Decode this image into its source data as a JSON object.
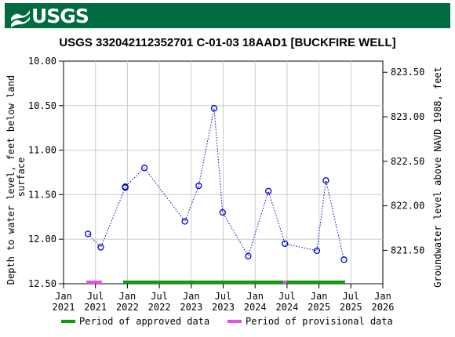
{
  "header": {
    "logo_text": "USGS",
    "logo_icon": "usgs-wave-icon",
    "banner_color": "#006b3f"
  },
  "chart_data": {
    "type": "scatter",
    "title": "USGS 332042112352701 C-01-03 18AAD1 [BUCKFIRE WELL]",
    "ylabel_left": [
      "Depth to water level, feet below land",
      "surface"
    ],
    "ylabel_right": "Groundwater level above NAVD 1988, feet",
    "y_left_range": [
      10.0,
      12.5
    ],
    "y_left_ticks": [
      "10.00",
      "10.50",
      "11.00",
      "11.50",
      "12.00",
      "12.50"
    ],
    "y_right_ticks": [
      {
        "depth": 10.125,
        "label": "823.50"
      },
      {
        "depth": 10.625,
        "label": "823.00"
      },
      {
        "depth": 11.125,
        "label": "822.50"
      },
      {
        "depth": 11.625,
        "label": "822.00"
      },
      {
        "depth": 12.125,
        "label": "821.50"
      }
    ],
    "x_ticks": [
      {
        "m": 0,
        "label": [
          "Jan",
          "2021"
        ]
      },
      {
        "m": 6,
        "label": [
          "Jul",
          "2021"
        ]
      },
      {
        "m": 12,
        "label": [
          "Jan",
          "2022"
        ]
      },
      {
        "m": 18,
        "label": [
          "Jul",
          "2022"
        ]
      },
      {
        "m": 24,
        "label": [
          "Jan",
          "2023"
        ]
      },
      {
        "m": 30,
        "label": [
          "Jul",
          "2023"
        ]
      },
      {
        "m": 36,
        "label": [
          "Jan",
          "2024"
        ]
      },
      {
        "m": 42,
        "label": [
          "Jul",
          "2024"
        ]
      },
      {
        "m": 48,
        "label": [
          "Jan",
          "2025"
        ]
      },
      {
        "m": 54,
        "label": [
          "Jul",
          "2025"
        ]
      },
      {
        "m": 60,
        "label": [
          "Jan",
          "2026"
        ]
      }
    ],
    "x_range_months": [
      0,
      60
    ],
    "series": [
      {
        "points": [
          {
            "date": "2021-05",
            "m": 4.6,
            "depth": 11.94
          },
          {
            "date": "2021-07",
            "m": 7.0,
            "depth": 12.09
          },
          {
            "date": "2021-12",
            "m": 11.6,
            "depth": 11.42
          },
          {
            "date": "2021-12",
            "m": 11.6,
            "depth": 11.41
          },
          {
            "date": "2022-04",
            "m": 15.2,
            "depth": 11.2
          },
          {
            "date": "2022-11",
            "m": 22.8,
            "depth": 11.8
          },
          {
            "date": "2023-02",
            "m": 25.4,
            "depth": 11.4
          },
          {
            "date": "2023-05",
            "m": 28.3,
            "depth": 10.53
          },
          {
            "date": "2023-07",
            "m": 29.9,
            "depth": 11.7
          },
          {
            "date": "2023-12",
            "m": 34.7,
            "depth": 12.19
          },
          {
            "date": "2024-04",
            "m": 38.5,
            "depth": 11.46
          },
          {
            "date": "2024-06",
            "m": 41.6,
            "depth": 12.05
          },
          {
            "date": "2024-12",
            "m": 47.6,
            "depth": 12.13
          },
          {
            "date": "2025-02",
            "m": 49.3,
            "depth": 11.34
          },
          {
            "date": "2025-05",
            "m": 52.7,
            "depth": 12.23
          }
        ]
      }
    ],
    "periods": [
      {
        "type": "provisional",
        "start_m": 4.3,
        "end_m": 7.2,
        "color": "#dd55dd"
      },
      {
        "type": "approved",
        "start_m": 11.2,
        "end_m": 41.3,
        "color": "#119911"
      },
      {
        "type": "provisional",
        "start_m": 41.3,
        "end_m": 41.9,
        "color": "#dd55dd"
      },
      {
        "type": "approved",
        "start_m": 41.9,
        "end_m": 52.9,
        "color": "#119911"
      }
    ],
    "legend": [
      {
        "label": "Period of approved data",
        "color": "#119911"
      },
      {
        "label": "Period of provisional data",
        "color": "#dd55dd"
      }
    ],
    "legend_position": "bottom",
    "grid": true,
    "marker_color": "#0000cc"
  }
}
